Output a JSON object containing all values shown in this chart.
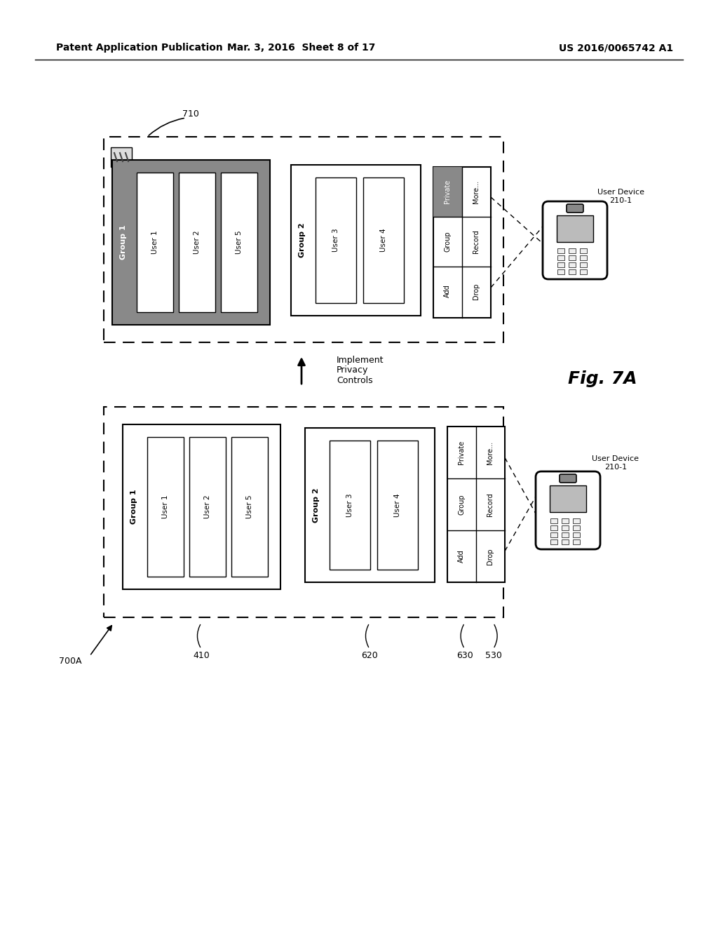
{
  "background_color": "#ffffff",
  "header_left": "Patent Application Publication",
  "header_mid": "Mar. 3, 2016  Sheet 8 of 17",
  "header_right": "US 2016/0065742 A1",
  "fig_label": "Fig. 7A",
  "arrow_label": "Implement\nPrivacy\nControls",
  "label_710": "710",
  "label_700A": "700A",
  "label_410": "410",
  "label_620": "620",
  "label_630": "630",
  "label_530": "530",
  "label_210_1": "User Device\n210-1",
  "dark_gray": "#898989",
  "light_gray": "#cccccc",
  "hatch_gray": "#909090"
}
